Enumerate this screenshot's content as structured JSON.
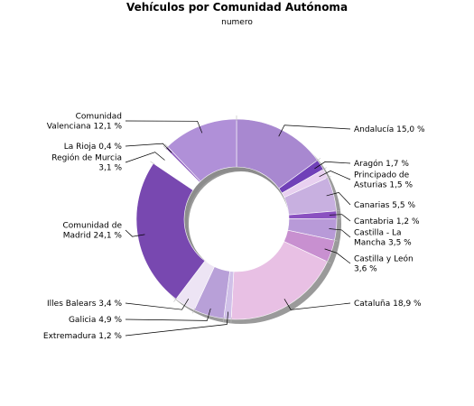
{
  "chart_data": {
    "type": "pie",
    "variant": "donut",
    "title": "Vehículos por Comunidad Autónoma",
    "subtitle": "numero",
    "unit": "%",
    "slices": [
      {
        "label": [
          "Andalucía 15,0 %"
        ],
        "value": 15.0,
        "color": "#a888d0"
      },
      {
        "label": [
          "Aragón 1,7 %"
        ],
        "value": 1.7,
        "color": "#7040b8"
      },
      {
        "label": [
          "Principado de",
          "Asturias 1,5 %"
        ],
        "value": 1.5,
        "color": "#e8d0f0"
      },
      {
        "label": [
          "Canarias 5,5 %"
        ],
        "value": 5.5,
        "color": "#c8b0e0"
      },
      {
        "label": [
          "Cantabria 1,2 %"
        ],
        "value": 1.2,
        "color": "#8a50c0"
      },
      {
        "label": [
          "Castilla - La",
          "Mancha 3,5 %"
        ],
        "value": 3.5,
        "color": "#b89ad8"
      },
      {
        "label": [
          "Castilla y León",
          "3,6 %"
        ],
        "value": 3.6,
        "color": "#c890d0"
      },
      {
        "label": [
          "Cataluña 18,9 %"
        ],
        "value": 18.9,
        "color": "#e8c0e4"
      },
      {
        "label": [
          "Extremadura 1,2 %"
        ],
        "value": 1.2,
        "color": "#d0c0e8"
      },
      {
        "label": [
          "Galicia 4,9 %"
        ],
        "value": 4.9,
        "color": "#b8a0d8"
      },
      {
        "label": [
          "Illes Balears 3,4 %"
        ],
        "value": 3.4,
        "color": "#ede4f4"
      },
      {
        "label": [
          "Comunidad de",
          "Madrid 24,1 %"
        ],
        "value": 24.1,
        "color": "#7848b0"
      },
      {
        "label": [
          "Región de Murcia",
          "3,1 %"
        ],
        "value": 3.1,
        "color": "#ffffff"
      },
      {
        "label": [
          "La Rioja 0,4 %"
        ],
        "value": 0.4,
        "color": "#9060c0"
      },
      {
        "label": [
          "Comunidad",
          "Valenciana 12,1 %"
        ],
        "value": 12.1,
        "color": "#b090d8"
      }
    ]
  }
}
